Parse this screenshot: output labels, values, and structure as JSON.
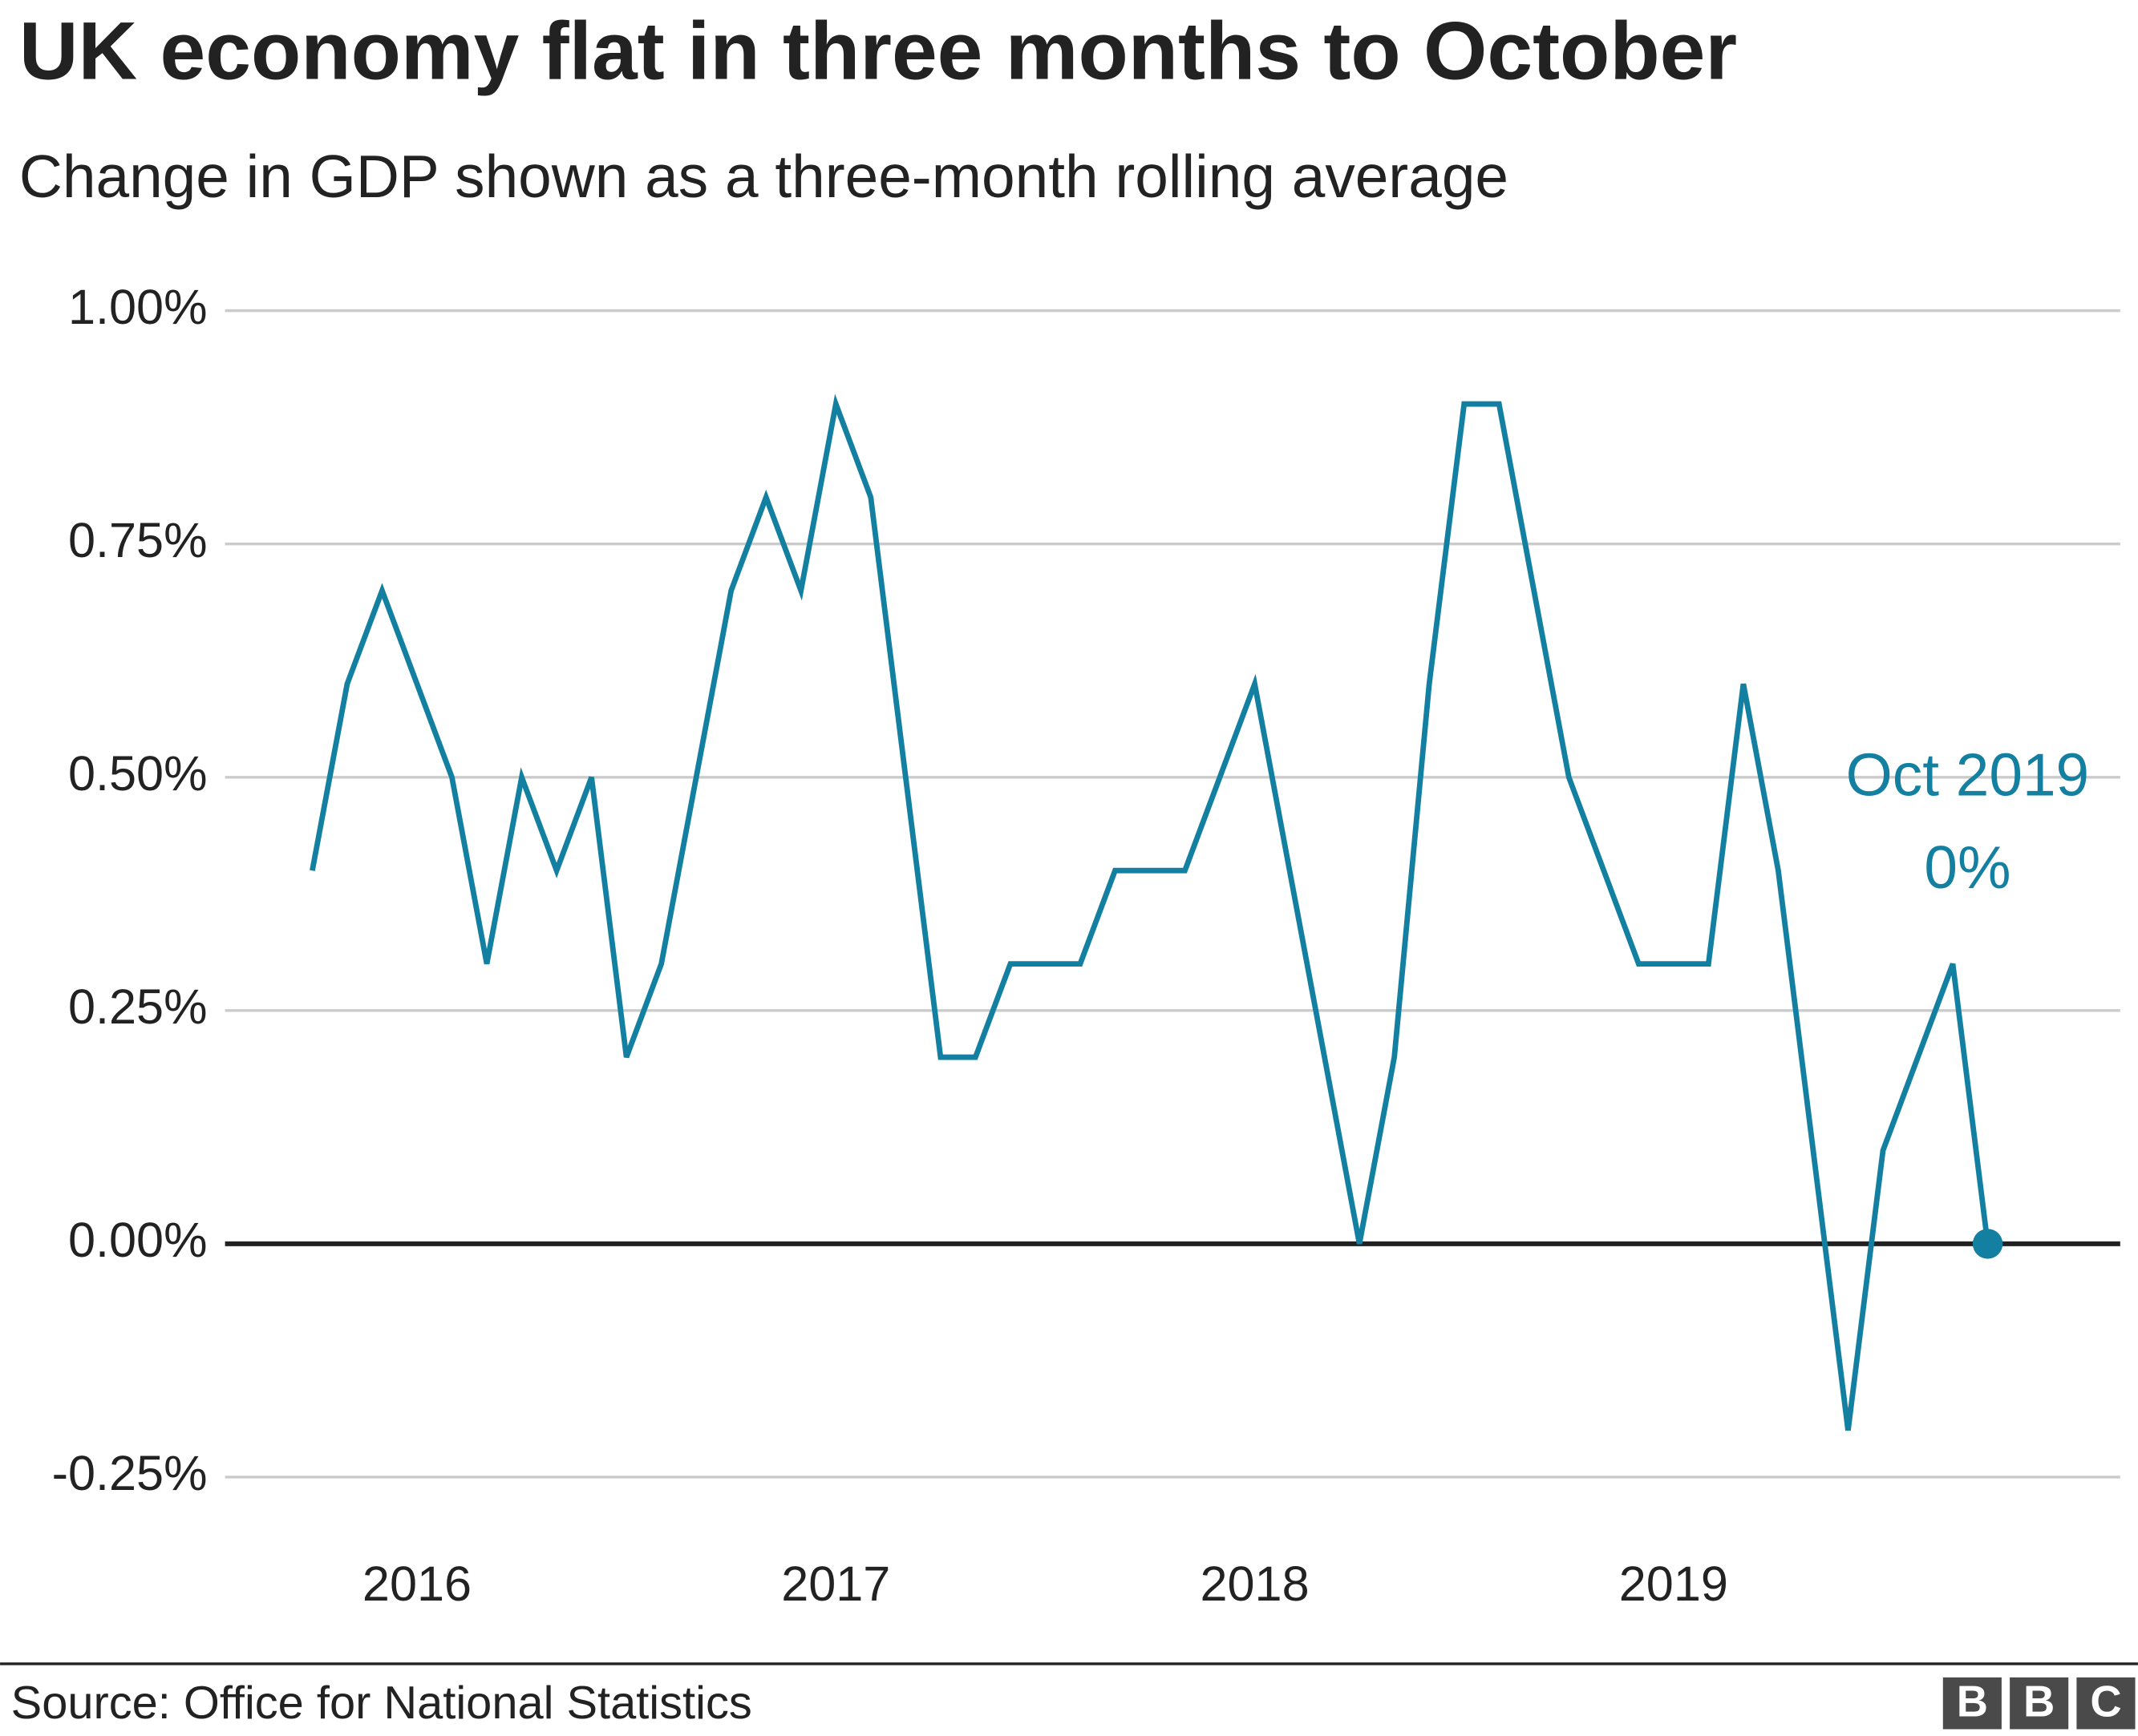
{
  "chart_data": {
    "type": "line",
    "title": "UK economy flat in three months to October",
    "subtitle": "Change in GDP shown as a three-month rolling average",
    "categories": [
      null,
      null,
      null,
      "2016",
      null,
      null,
      null,
      null,
      null,
      null,
      null,
      null,
      null,
      null,
      null,
      "2017",
      null,
      null,
      null,
      null,
      null,
      null,
      null,
      null,
      null,
      null,
      null,
      "2018",
      null,
      null,
      null,
      null,
      null,
      null,
      null,
      null,
      null,
      null,
      null,
      "2019",
      null,
      null,
      null,
      null,
      null,
      null,
      null,
      null,
      null
    ],
    "values": [
      0.4,
      0.6,
      0.7,
      0.6,
      0.5,
      0.3,
      0.5,
      0.4,
      0.5,
      0.2,
      0.3,
      0.5,
      0.7,
      0.8,
      0.7,
      0.9,
      0.8,
      0.5,
      0.2,
      0.2,
      0.3,
      0.3,
      0.3,
      0.4,
      0.4,
      0.4,
      0.5,
      0.6,
      0.4,
      0.2,
      0.0,
      0.2,
      0.6,
      0.9,
      0.9,
      0.7,
      0.5,
      0.4,
      0.3,
      0.3,
      0.3,
      0.6,
      0.4,
      0.1,
      -0.2,
      0.1,
      0.2,
      0.3,
      0.0
    ],
    "color": "#1380a1",
    "ylim": [
      -0.25,
      1.0
    ],
    "yticks": [
      {
        "value": -0.25,
        "label": "-0.25%"
      },
      {
        "value": 0,
        "label": "0.00%"
      },
      {
        "value": 0.25,
        "label": "0.25%"
      },
      {
        "value": 0.5,
        "label": "0.50%"
      },
      {
        "value": 0.75,
        "label": "0.75%"
      },
      {
        "value": 1.0,
        "label": "1.00%"
      }
    ],
    "grid": true,
    "zero_line": true,
    "end_marker": true,
    "annotation": {
      "lines": [
        "Oct 2019",
        "0%"
      ]
    },
    "source": "Source: Office for National Statistics",
    "logo": [
      "B",
      "B",
      "C"
    ]
  }
}
